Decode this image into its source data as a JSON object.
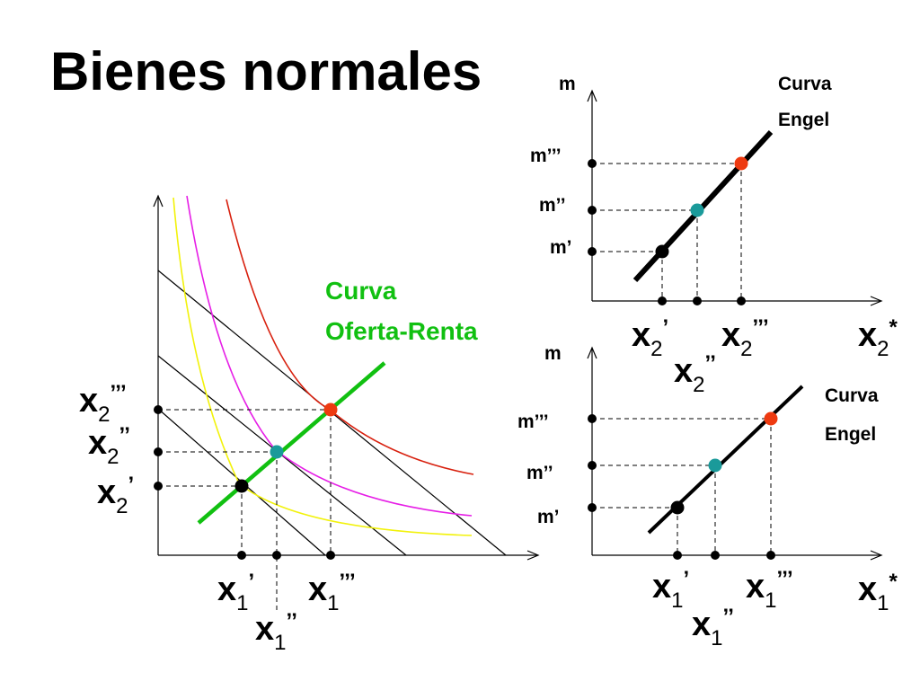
{
  "title": "Bienes normales",
  "colors": {
    "line": "#000000",
    "offer_curve": "#11c011",
    "indiff_low": "#f2f20a",
    "indiff_mid": "#e61ee6",
    "indiff_high": "#d8200e",
    "point_low": "#000000",
    "point_mid": "#1a9a9a",
    "point_high": "#ee3a10"
  },
  "main": {
    "offer_curve_label": [
      "Curva",
      "Oferta-Renta"
    ],
    "y_ticks": [
      {
        "base": "x",
        "sub": "2",
        "mark": "’’’"
      },
      {
        "base": "x",
        "sub": "2",
        "mark": "’’"
      },
      {
        "base": "x",
        "sub": "2",
        "mark": "’"
      }
    ],
    "x_ticks": [
      {
        "base": "x",
        "sub": "1",
        "mark": "’"
      },
      {
        "base": "x",
        "sub": "1",
        "mark": "’’’"
      },
      {
        "base": "x",
        "sub": "1",
        "mark": "’’"
      }
    ]
  },
  "engel_top": {
    "y_axis_label": "m",
    "curve_label": [
      "Curva",
      "Engel"
    ],
    "y_ticks": [
      "m’’’",
      "m’’",
      "m’"
    ],
    "x_axis_label": {
      "base": "x",
      "sub": "2",
      "mark": "*"
    },
    "x_ticks": [
      {
        "base": "x",
        "sub": "2",
        "mark": "’"
      },
      {
        "base": "x",
        "sub": "2",
        "mark": "’’’"
      },
      {
        "base": "x",
        "sub": "2",
        "mark": "’’"
      }
    ]
  },
  "engel_bottom": {
    "y_axis_label": "m",
    "curve_label": [
      "Curva",
      "Engel"
    ],
    "y_ticks": [
      "m’’’",
      "m’’",
      "m’"
    ],
    "x_axis_label": {
      "base": "x",
      "sub": "1",
      "mark": "*"
    },
    "x_ticks": [
      {
        "base": "x",
        "sub": "1",
        "mark": "’"
      },
      {
        "base": "x",
        "sub": "1",
        "mark": "’’’"
      },
      {
        "base": "x",
        "sub": "1",
        "mark": "’’"
      }
    ]
  }
}
